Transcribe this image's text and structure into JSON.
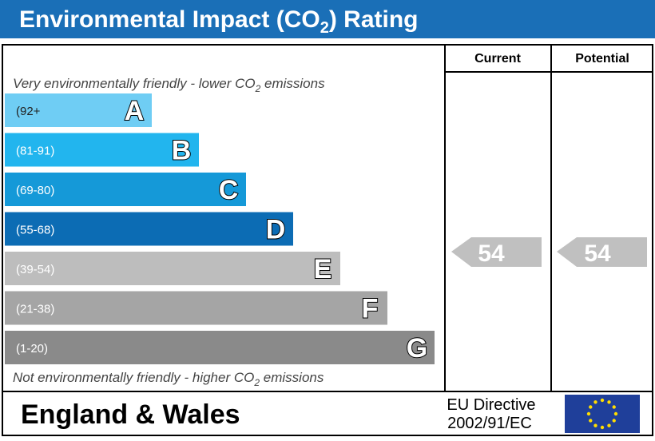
{
  "header": {
    "title": [
      "Environmental Impact (CO",
      "2",
      ") Rating"
    ]
  },
  "columns": [
    "Current",
    "Potential"
  ],
  "top_note": [
    "Very environmentally friendly - lower CO",
    "2",
    " emissions"
  ],
  "bottom_note": [
    "Not environmentally friendly - higher CO",
    "2",
    " emissions"
  ],
  "bands": [
    {
      "range": "(92+",
      "letter": "A",
      "color": "#6fcdf4"
    },
    {
      "range": "(81-91)",
      "letter": "B",
      "color": "#22b5ee"
    },
    {
      "range": "(69-80)",
      "letter": "C",
      "color": "#1599d8"
    },
    {
      "range": "(55-68)",
      "letter": "D",
      "color": "#0c6cb4"
    },
    {
      "range": "(39-54)",
      "letter": "E",
      "color": "#bdbdbd"
    },
    {
      "range": "(21-38)",
      "letter": "F",
      "color": "#a5a5a5"
    },
    {
      "range": "(1-20)",
      "letter": "G",
      "color": "#8a8a8a"
    }
  ],
  "current": {
    "value": 54
  },
  "potential": {
    "value": 54
  },
  "footer": {
    "region": "England & Wales",
    "directive": [
      "EU Directive",
      "2002/91/EC"
    ]
  }
}
